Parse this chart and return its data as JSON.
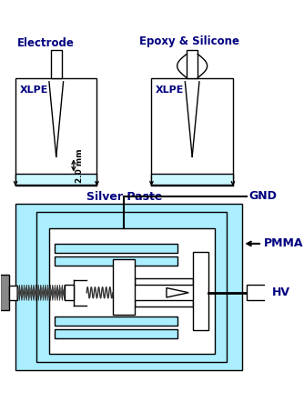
{
  "bg_color": "#ffffff",
  "light_blue": "#aaeeff",
  "line_color": "#000000",
  "text_color": "#000080",
  "silver_paste_color": "#ccf8ff",
  "electrode_label": "Electrode",
  "epoxy_label": "Epoxy & Silicone",
  "xlpe_label": "XLPE",
  "silver_paste_label": "Silver Paste",
  "gnd_label": "GND",
  "pmma_label": "PMMA",
  "hv_label": "HV",
  "dim_label": "2.0 mm"
}
